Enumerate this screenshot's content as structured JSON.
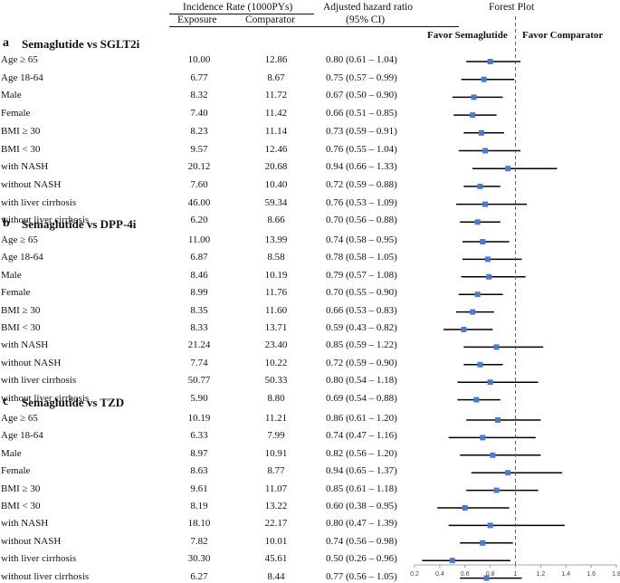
{
  "header": {
    "incidence_label": "Incidence Rate (1000PYs)",
    "exposure_label": "Exposure",
    "comparator_label": "Comparator",
    "hr_label": "Adjusted hazard ratio",
    "ci_label": "(95% CI)",
    "forest_label": "Forest Plot",
    "favor_left": "Favor Semaglutide",
    "favor_right": "Favor Comparator"
  },
  "sections": [
    {
      "letter": "a",
      "title": "Semaglutide vs SGLT2i",
      "rows": [
        {
          "label": "Age ≥ 65",
          "exposure": "10.00",
          "comparator": "12.86",
          "hr_text": "0.80  (0.61 – 1.04)",
          "hr": 0.8,
          "lo": 0.61,
          "hi": 1.04
        },
        {
          "label": "Age 18-64",
          "exposure": "6.77",
          "comparator": "8.67",
          "hr_text": "0.75  (0.57 – 0.99)",
          "hr": 0.75,
          "lo": 0.57,
          "hi": 0.99
        },
        {
          "label": "Male",
          "exposure": "8.32",
          "comparator": "11.72",
          "hr_text": "0.67  (0.50 – 0.90)",
          "hr": 0.67,
          "lo": 0.5,
          "hi": 0.9
        },
        {
          "label": "Female",
          "exposure": "7.40",
          "comparator": "11.42",
          "hr_text": "0.66  (0.51 – 0.85)",
          "hr": 0.66,
          "lo": 0.51,
          "hi": 0.85
        },
        {
          "label": "BMI  ≥ 30",
          "exposure": "8.23",
          "comparator": "11.14",
          "hr_text": "0.73  (0.59 – 0.91)",
          "hr": 0.73,
          "lo": 0.59,
          "hi": 0.91
        },
        {
          "label": "BMI < 30",
          "exposure": "9.57",
          "comparator": "12.46",
          "hr_text": "0.76  (0.55 – 1.04)",
          "hr": 0.76,
          "lo": 0.55,
          "hi": 1.04
        },
        {
          "label": "with NASH",
          "exposure": "20.12",
          "comparator": "20.68",
          "hr_text": "0.94  (0.66 – 1.33)",
          "hr": 0.94,
          "lo": 0.66,
          "hi": 1.33
        },
        {
          "label": "without NASH",
          "exposure": "7.60",
          "comparator": "10.40",
          "hr_text": "0.72  (0.59 – 0.88)",
          "hr": 0.72,
          "lo": 0.59,
          "hi": 0.88
        },
        {
          "label": "with liver cirrhosis",
          "exposure": "46.00",
          "comparator": "59.34",
          "hr_text": "0.76  (0.53 – 1.09)",
          "hr": 0.76,
          "lo": 0.53,
          "hi": 1.09
        },
        {
          "label": "without liver cirrhosis",
          "exposure": "6.20",
          "comparator": "8.66",
          "hr_text": "0.70  (0.56 – 0.88)",
          "hr": 0.7,
          "lo": 0.56,
          "hi": 0.88
        }
      ]
    },
    {
      "letter": "b",
      "title": "Semaglutide vs DPP-4i",
      "rows": [
        {
          "label": "Age ≥ 65",
          "exposure": "11.00",
          "comparator": "13.99",
          "hr_text": "0.74  (0.58 – 0.95)",
          "hr": 0.74,
          "lo": 0.58,
          "hi": 0.95
        },
        {
          "label": "Age 18-64",
          "exposure": "6.87",
          "comparator": "8.58",
          "hr_text": "0.78  (0.58 – 1.05)",
          "hr": 0.78,
          "lo": 0.58,
          "hi": 1.05
        },
        {
          "label": "Male",
          "exposure": "8.46",
          "comparator": "10.19",
          "hr_text": "0.79  (0.57 – 1.08)",
          "hr": 0.79,
          "lo": 0.57,
          "hi": 1.08
        },
        {
          "label": "Female",
          "exposure": "8.99",
          "comparator": "11.76",
          "hr_text": "0.70  (0.55 – 0.90)",
          "hr": 0.7,
          "lo": 0.55,
          "hi": 0.9
        },
        {
          "label": "BMI  ≥ 30",
          "exposure": "8.35",
          "comparator": "11.60",
          "hr_text": "0.66  (0.53 – 0.83)",
          "hr": 0.66,
          "lo": 0.53,
          "hi": 0.83
        },
        {
          "label": "BMI < 30",
          "exposure": "8.33",
          "comparator": "13.71",
          "hr_text": "0.59  (0.43 – 0.82)",
          "hr": 0.59,
          "lo": 0.43,
          "hi": 0.82
        },
        {
          "label": "with NASH",
          "exposure": "21.24",
          "comparator": "23.40",
          "hr_text": "0.85  (0.59 – 1.22)",
          "hr": 0.85,
          "lo": 0.59,
          "hi": 1.22
        },
        {
          "label": "without NASH",
          "exposure": "7.74",
          "comparator": "10.22",
          "hr_text": "0.72  (0.59 – 0.90)",
          "hr": 0.72,
          "lo": 0.59,
          "hi": 0.9
        },
        {
          "label": "with liver cirrhosis",
          "exposure": "50.77",
          "comparator": "50.33",
          "hr_text": "0.80  (0.54 – 1.18)",
          "hr": 0.8,
          "lo": 0.54,
          "hi": 1.18
        },
        {
          "label": "without liver cirrhosis",
          "exposure": "5.90",
          "comparator": "8.80",
          "hr_text": "0.69  (0.54 – 0.88)",
          "hr": 0.69,
          "lo": 0.54,
          "hi": 0.88
        }
      ]
    },
    {
      "letter": "c",
      "title": "Semaglutide vs TZD",
      "rows": [
        {
          "label": "Age ≥ 65",
          "exposure": "10.19",
          "comparator": "11.21",
          "hr_text": "0.86  (0.61 – 1.20)",
          "hr": 0.86,
          "lo": 0.61,
          "hi": 1.2
        },
        {
          "label": "Age 18-64",
          "exposure": "6.33",
          "comparator": "7.99",
          "hr_text": "0.74  (0.47 – 1.16)",
          "hr": 0.74,
          "lo": 0.47,
          "hi": 1.16
        },
        {
          "label": "Male",
          "exposure": "8.97",
          "comparator": "10.91",
          "hr_text": "0.82  (0.56 – 1.20)",
          "hr": 0.82,
          "lo": 0.56,
          "hi": 1.2
        },
        {
          "label": "Female",
          "exposure": "8.63",
          "comparator": "8.77",
          "hr_text": "0.94  (0.65 – 1.37)",
          "hr": 0.94,
          "lo": 0.65,
          "hi": 1.37
        },
        {
          "label": "BMI  ≥ 30",
          "exposure": "9.61",
          "comparator": "11.07",
          "hr_text": "0.85  (0.61 – 1.18)",
          "hr": 0.85,
          "lo": 0.61,
          "hi": 1.18
        },
        {
          "label": "BMI < 30",
          "exposure": "8.19",
          "comparator": "13.22",
          "hr_text": "0.60  (0.38 – 0.95)",
          "hr": 0.6,
          "lo": 0.38,
          "hi": 0.95
        },
        {
          "label": "with NASH",
          "exposure": "18.10",
          "comparator": "22.17",
          "hr_text": "0.80  (0.47 – 1.39)",
          "hr": 0.8,
          "lo": 0.47,
          "hi": 1.39
        },
        {
          "label": "without NASH",
          "exposure": "7.82",
          "comparator": "10.01",
          "hr_text": "0.74  (0.56 – 0.98)",
          "hr": 0.74,
          "lo": 0.56,
          "hi": 0.98
        },
        {
          "label": "with liver cirrhosis",
          "exposure": "30.30",
          "comparator": "45.61",
          "hr_text": "0.50  (0.26 – 0.96)",
          "hr": 0.5,
          "lo": 0.26,
          "hi": 0.96
        },
        {
          "label": "without liver cirrhosis",
          "exposure": "6.27",
          "comparator": "8.44",
          "hr_text": "0.77  (0.56 – 1.05)",
          "hr": 0.77,
          "lo": 0.56,
          "hi": 1.05
        }
      ]
    }
  ],
  "chart_data": {
    "type": "forest",
    "xlim": [
      0.2,
      1.8
    ],
    "x_ticks": [
      "0.2",
      "0.4",
      "0.6",
      "0.8",
      "1",
      "1.2",
      "1.4",
      "1.6",
      "1.8"
    ],
    "reference_line": 1.0,
    "marker_color": "#4a7bd0",
    "line_color": "#000000"
  }
}
